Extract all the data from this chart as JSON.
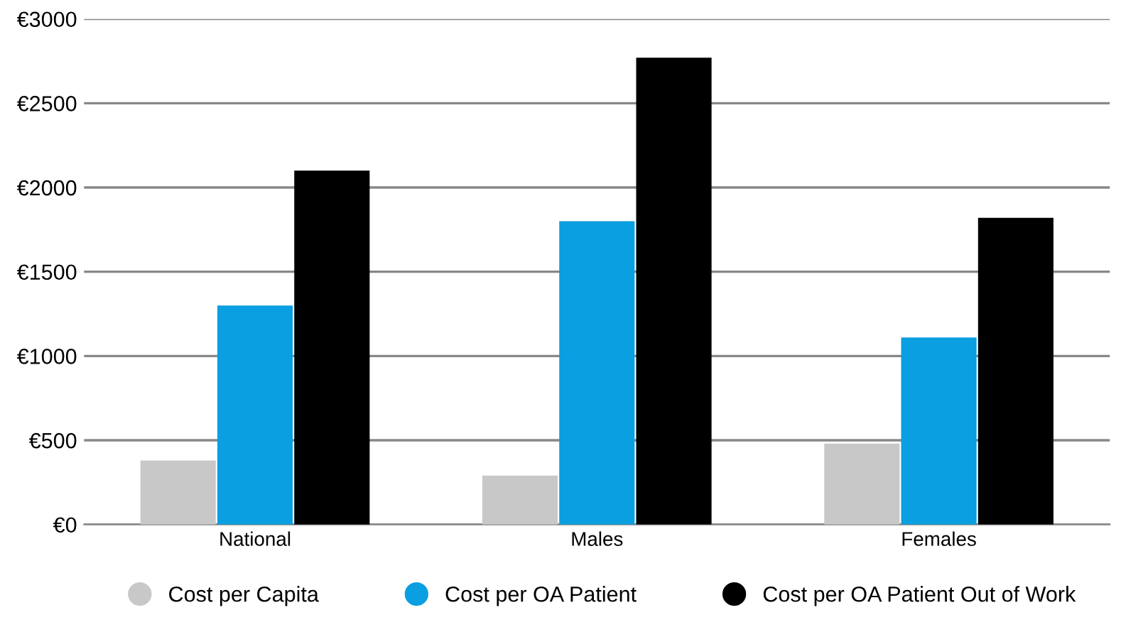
{
  "chart_data": {
    "type": "bar",
    "categories": [
      "National",
      "Males",
      "Females"
    ],
    "series": [
      {
        "name": "Cost per Capita",
        "color": "#c8c8c8",
        "values": [
          380,
          290,
          480
        ]
      },
      {
        "name": "Cost per OA Patient",
        "color": "#0a9fe0",
        "values": [
          1300,
          1800,
          1110
        ]
      },
      {
        "name": "Cost per OA Patient Out of Work",
        "color": "#000000",
        "values": [
          2100,
          2770,
          1820
        ]
      }
    ],
    "ylim": [
      0,
      3000
    ],
    "yticks": [
      {
        "value": 0,
        "label": "€0"
      },
      {
        "value": 500,
        "label": "€500"
      },
      {
        "value": 1000,
        "label": "€1000"
      },
      {
        "value": 1500,
        "label": "€1500"
      },
      {
        "value": 2000,
        "label": "€2000"
      },
      {
        "value": 2500,
        "label": "€2500"
      },
      {
        "value": 3000,
        "label": "€3000"
      }
    ],
    "grid": "y",
    "legend": "bottom",
    "marker": "circle"
  }
}
